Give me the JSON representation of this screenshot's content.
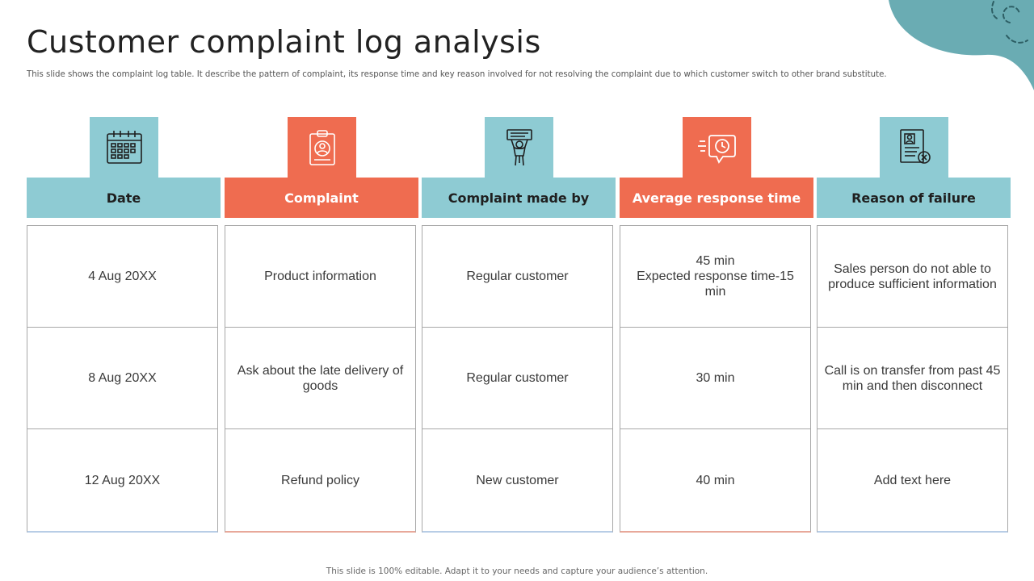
{
  "title": "Customer complaint log analysis",
  "subtitle": "This slide shows the complaint log table. It describe the pattern of complaint, its response time and key reason involved for not resolving the complaint due to which customer switch to other brand substitute.",
  "footer": "This slide is 100% editable. Adapt it to your needs and capture your audience’s attention.",
  "colors": {
    "teal": "#8ecbd3",
    "coral": "#ef6c50",
    "blob": "#6aacb3"
  },
  "columns": [
    {
      "header": "Date",
      "icon": "calendar-icon",
      "theme": "teal",
      "cells": [
        "4 Aug 20XX",
        "8 Aug 20XX",
        "12 Aug 20XX"
      ]
    },
    {
      "header": "Complaint",
      "icon": "clipboard-user-icon",
      "theme": "coral",
      "cells": [
        "Product information",
        "Ask about the late delivery of goods",
        "Refund policy"
      ]
    },
    {
      "header": "Complaint made by",
      "icon": "protester-sign-icon",
      "theme": "teal",
      "cells": [
        "Regular customer",
        "Regular customer",
        "New customer"
      ]
    },
    {
      "header": "Average response time",
      "icon": "fast-response-clock-icon",
      "theme": "coral",
      "cells": [
        "45 min\nExpected response time-15 min",
        "30 min",
        "40 min"
      ]
    },
    {
      "header": "Reason of failure",
      "icon": "rejected-document-icon",
      "theme": "teal",
      "cells": [
        "Sales person do not able to produce sufficient information",
        "Call is on transfer from past 45 min and then disconnect",
        "Add text here"
      ]
    }
  ]
}
